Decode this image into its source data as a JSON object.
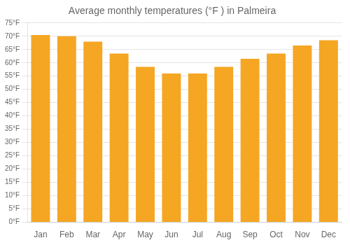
{
  "chart_data": {
    "type": "bar",
    "title": "Average monthly temperatures (°F ) in Palmeira",
    "categories": [
      "Jan",
      "Feb",
      "Mar",
      "Apr",
      "May",
      "Jun",
      "Jul",
      "Aug",
      "Sep",
      "Oct",
      "Nov",
      "Dec"
    ],
    "values": [
      70.5,
      70.0,
      68.0,
      63.5,
      58.5,
      56.0,
      56.0,
      58.5,
      61.5,
      63.5,
      66.5,
      68.5
    ],
    "color": "#F5A623",
    "ylim": [
      0,
      75
    ],
    "yticks": [
      {
        "value": 0,
        "label": "0°F"
      },
      {
        "value": 5,
        "label": "5°F"
      },
      {
        "value": 10,
        "label": "10°F"
      },
      {
        "value": 15,
        "label": "15°F"
      },
      {
        "value": 20,
        "label": "20°F"
      },
      {
        "value": 25,
        "label": "25°F"
      },
      {
        "value": 30,
        "label": "30°F"
      },
      {
        "value": 35,
        "label": "35°F"
      },
      {
        "value": 40,
        "label": "40°F"
      },
      {
        "value": 45,
        "label": "45°F"
      },
      {
        "value": 50,
        "label": "50°F"
      },
      {
        "value": 55,
        "label": "55°F"
      },
      {
        "value": 60,
        "label": "60°F"
      },
      {
        "value": 65,
        "label": "65°F"
      },
      {
        "value": 70,
        "label": "70°F"
      },
      {
        "value": 75,
        "label": "75°F"
      }
    ],
    "grid": true
  }
}
